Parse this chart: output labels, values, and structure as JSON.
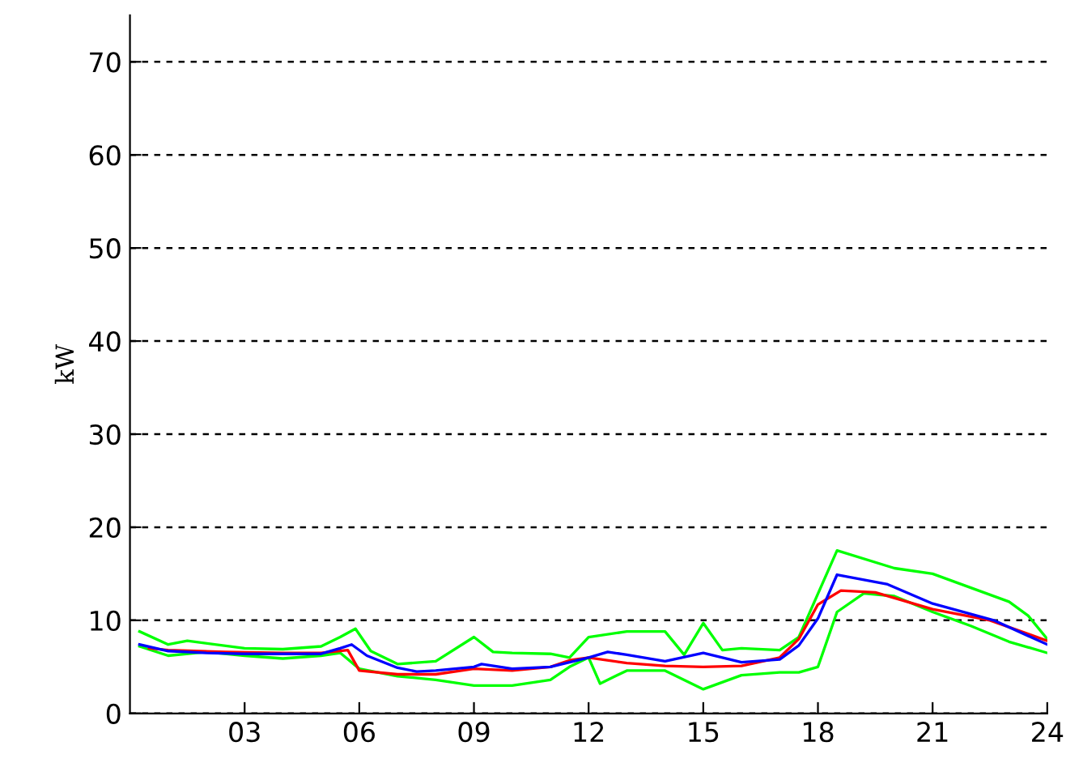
{
  "chart_data": {
    "type": "line",
    "ylabel": "kW",
    "xlim": [
      0,
      24
    ],
    "ylim": [
      0,
      75
    ],
    "xticks": [
      {
        "value": 3,
        "label": "03"
      },
      {
        "value": 6,
        "label": "06"
      },
      {
        "value": 9,
        "label": "09"
      },
      12,
      15,
      18,
      21,
      24
    ],
    "yticks": [
      0,
      10,
      20,
      30,
      40,
      50,
      60,
      70
    ],
    "grid": "y",
    "marker": "none",
    "line_style": "solid",
    "series": [
      {
        "color": "#00ff00",
        "x": [
          0.25,
          1,
          1.5,
          3,
          4,
          5,
          5.5,
          5.9,
          6.3,
          7,
          8,
          9,
          9.5,
          10,
          11,
          11.5,
          12,
          13,
          14,
          14.5,
          15,
          15.5,
          16,
          17,
          17.5,
          18.5,
          20,
          21,
          22,
          23,
          23.5,
          24
        ],
        "values": [
          8.8,
          7.4,
          7.8,
          7.0,
          6.9,
          7.2,
          8.2,
          9.1,
          6.7,
          5.3,
          5.6,
          8.2,
          6.6,
          6.5,
          6.4,
          6.0,
          8.2,
          8.8,
          8.8,
          6.3,
          9.7,
          6.8,
          7.0,
          6.8,
          8.2,
          17.5,
          15.6,
          15.0,
          13.5,
          12.0,
          10.5,
          8.0
        ]
      },
      {
        "color": "#00ff00",
        "x": [
          0.25,
          1,
          2,
          3,
          4,
          5,
          5.5,
          6,
          7,
          8,
          9,
          10,
          11,
          11.5,
          12,
          12.3,
          13,
          14,
          15,
          16,
          17,
          17.5,
          18,
          18.5,
          19.2,
          20,
          21,
          22,
          23,
          24
        ],
        "values": [
          7.2,
          6.2,
          6.6,
          6.2,
          5.9,
          6.2,
          6.5,
          4.8,
          4.0,
          3.6,
          3.0,
          3.0,
          3.6,
          5.0,
          6.0,
          3.2,
          4.6,
          4.6,
          2.6,
          4.1,
          4.4,
          4.4,
          5.0,
          10.9,
          12.9,
          12.6,
          10.9,
          9.4,
          7.7,
          6.5
        ]
      },
      {
        "color": "#ff0000",
        "x": [
          0.5,
          1,
          2.5,
          4,
          5,
          5.7,
          6,
          7,
          8,
          9,
          10,
          11,
          11.5,
          12,
          13,
          14,
          15,
          16,
          17,
          17.5,
          18,
          18.6,
          19.5,
          21,
          22.5,
          24
        ],
        "values": [
          7.0,
          6.8,
          6.6,
          6.5,
          6.5,
          6.8,
          4.6,
          4.2,
          4.2,
          4.8,
          4.6,
          5.0,
          5.7,
          6.0,
          5.4,
          5.1,
          5.0,
          5.1,
          6.0,
          8.0,
          11.7,
          13.2,
          13.0,
          11.2,
          10.0,
          7.8
        ]
      },
      {
        "color": "#0000ff",
        "x": [
          0.25,
          1,
          2,
          3,
          4,
          5,
          5.5,
          5.8,
          6.2,
          7,
          7.5,
          8,
          9,
          9.2,
          10,
          11,
          12,
          12.5,
          13,
          14,
          15,
          16,
          17,
          17.5,
          18,
          18.5,
          19.8,
          21,
          22.6,
          24
        ],
        "values": [
          7.4,
          6.7,
          6.5,
          6.4,
          6.4,
          6.4,
          7.0,
          7.4,
          6.2,
          4.9,
          4.5,
          4.6,
          5.0,
          5.3,
          4.8,
          5.0,
          6.0,
          6.6,
          6.3,
          5.6,
          6.5,
          5.5,
          5.8,
          7.3,
          10.2,
          14.9,
          13.9,
          11.8,
          10.0,
          7.4
        ]
      }
    ]
  }
}
